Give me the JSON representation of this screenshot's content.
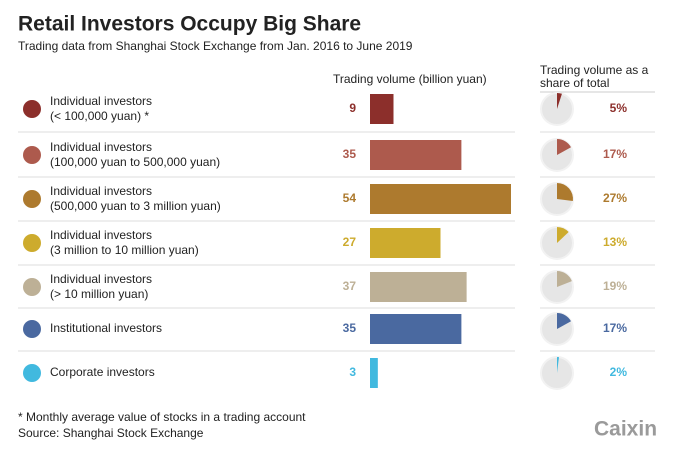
{
  "chart_data": {
    "type": "bar",
    "title": "Retail Investors Occupy Big Share",
    "subtitle": "Trading data from Shanghai Stock Exchange from Jan. 2016 to June 2019",
    "categories": [
      "Individual investors",
      "Individual investors",
      "Individual investors",
      "Individual investors",
      "Individual investors",
      "Institutional investors",
      "Corporate investors"
    ],
    "category_details": [
      "(< 100,000 yuan) *",
      "(100,000 yuan to 500,000 yuan)",
      "(500,000 yuan to 3 million yuan)",
      "(3 million to 10 million yuan)",
      "(> 10 million yuan)",
      null,
      null
    ],
    "colors": [
      "#8c2f2b",
      "#ad5a4d",
      "#ad7a2e",
      "#cdab2d",
      "#bdb096",
      "#4a69a0",
      "#41b9df"
    ],
    "series": [
      {
        "name": "Trading volume (billion yuan)",
        "values": [
          9,
          35,
          54,
          27,
          37,
          35,
          3
        ]
      },
      {
        "name": "Trading volume as a share of total",
        "values": [
          5,
          17,
          27,
          13,
          19,
          17,
          2
        ],
        "value_labels": [
          "5%",
          "17%",
          "27%",
          "13%",
          "19%",
          "17%",
          "2%"
        ]
      }
    ],
    "footnote": "* Monthly average value of stocks in a trading account",
    "source": "Source: Shanghai Stock Exchange",
    "logo": "Caixin"
  }
}
